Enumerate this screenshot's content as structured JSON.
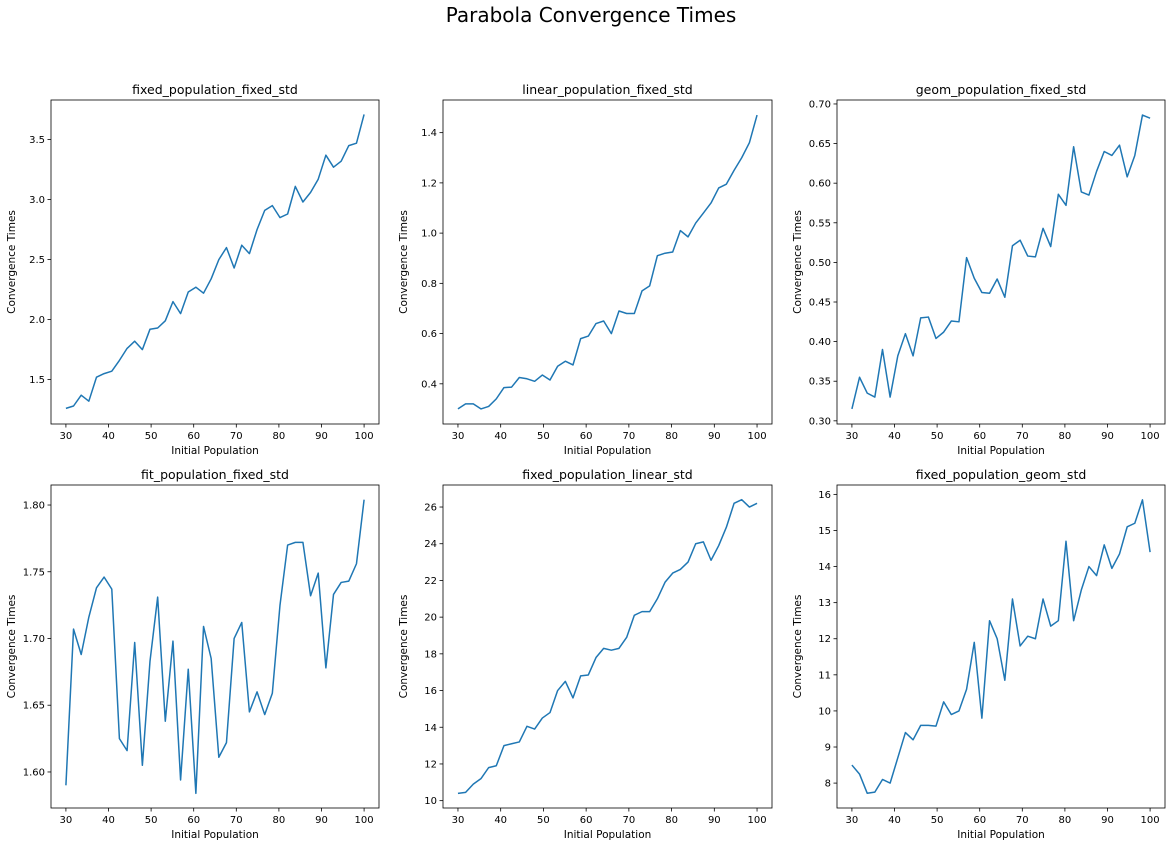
{
  "title": "Parabola Convergence Times",
  "chart_data": [
    {
      "type": "line",
      "title": "fixed_population_fixed_std",
      "x_label": "Initial Population",
      "y_label": "Convergence Times",
      "x": [
        30,
        31.79,
        33.59,
        35.38,
        37.18,
        38.97,
        40.77,
        42.56,
        44.36,
        46.15,
        47.95,
        49.74,
        51.54,
        53.33,
        55.13,
        56.92,
        58.72,
        60.51,
        62.31,
        64.1,
        65.9,
        67.69,
        69.49,
        71.28,
        73.08,
        74.87,
        76.67,
        78.46,
        80.26,
        82.05,
        83.85,
        85.64,
        87.44,
        89.23,
        91.03,
        92.82,
        94.62,
        96.41,
        98.21,
        100
      ],
      "series": [
        {
          "color": "#1f77b4",
          "values": [
            1.26,
            1.28,
            1.37,
            1.32,
            1.52,
            1.55,
            1.57,
            1.66,
            1.76,
            1.82,
            1.75,
            1.92,
            1.93,
            1.99,
            2.15,
            2.05,
            2.23,
            2.27,
            2.22,
            2.34,
            2.5,
            2.6,
            2.43,
            2.62,
            2.55,
            2.75,
            2.91,
            2.95,
            2.85,
            2.88,
            3.11,
            2.98,
            3.06,
            3.17,
            3.37,
            3.27,
            3.32,
            3.45,
            3.47,
            3.71
          ]
        }
      ],
      "xlim": [
        26.5,
        103.5
      ],
      "xticks": [
        30,
        40,
        50,
        60,
        70,
        80,
        90,
        100
      ],
      "ylim": [
        1.13,
        3.83
      ],
      "yticks": [
        1.5,
        {
          "value": 2,
          "label": "2.0"
        },
        2.5,
        {
          "value": 3,
          "label": "3.0"
        },
        3.5
      ]
    },
    {
      "type": "line",
      "title": "linear_population_fixed_std",
      "x_label": "Initial Population",
      "y_label": "Convergence Times",
      "x": [
        30,
        31.79,
        33.59,
        35.38,
        37.18,
        38.97,
        40.77,
        42.56,
        44.36,
        46.15,
        47.95,
        49.74,
        51.54,
        53.33,
        55.13,
        56.92,
        58.72,
        60.51,
        62.31,
        64.1,
        65.9,
        67.69,
        69.49,
        71.28,
        73.08,
        74.87,
        76.67,
        78.46,
        80.26,
        82.05,
        83.85,
        85.64,
        87.44,
        89.23,
        91.03,
        92.82,
        94.62,
        96.41,
        98.21,
        100
      ],
      "series": [
        {
          "color": "#1f77b4",
          "values": [
            0.3,
            0.32,
            0.32,
            0.3,
            0.31,
            0.34,
            0.385,
            0.387,
            0.425,
            0.42,
            0.41,
            0.435,
            0.415,
            0.47,
            0.49,
            0.475,
            0.58,
            0.59,
            0.64,
            0.65,
            0.6,
            0.69,
            0.68,
            0.68,
            0.77,
            0.79,
            0.91,
            0.92,
            0.925,
            1.01,
            0.985,
            1.04,
            1.08,
            1.12,
            1.18,
            1.195,
            1.25,
            1.3,
            1.36,
            1.47
          ]
        }
      ],
      "xlim": [
        26.5,
        103.5
      ],
      "xticks": [
        30,
        40,
        50,
        60,
        70,
        80,
        90,
        100
      ],
      "ylim": [
        0.24,
        1.53
      ],
      "yticks": [
        0.4,
        0.6,
        0.8,
        {
          "value": 1,
          "label": "1.0"
        },
        1.2,
        1.4
      ]
    },
    {
      "type": "line",
      "title": "geom_population_fixed_std",
      "x_label": "Initial Population",
      "y_label": "Convergence Times",
      "x": [
        30,
        31.79,
        33.59,
        35.38,
        37.18,
        38.97,
        40.77,
        42.56,
        44.36,
        46.15,
        47.95,
        49.74,
        51.54,
        53.33,
        55.13,
        56.92,
        58.72,
        60.51,
        62.31,
        64.1,
        65.9,
        67.69,
        69.49,
        71.28,
        73.08,
        74.87,
        76.67,
        78.46,
        80.26,
        82.05,
        83.85,
        85.64,
        87.44,
        89.23,
        91.03,
        92.82,
        94.62,
        96.41,
        98.21,
        100
      ],
      "series": [
        {
          "color": "#1f77b4",
          "values": [
            0.315,
            0.355,
            0.335,
            0.33,
            0.39,
            0.33,
            0.382,
            0.41,
            0.382,
            0.43,
            0.431,
            0.404,
            0.412,
            0.426,
            0.425,
            0.506,
            0.48,
            0.462,
            0.461,
            0.479,
            0.456,
            0.521,
            0.528,
            0.508,
            0.507,
            0.543,
            0.52,
            0.586,
            0.572,
            0.646,
            0.589,
            0.585,
            0.615,
            0.64,
            0.635,
            0.648,
            0.608,
            0.635,
            0.686,
            0.682
          ]
        }
      ],
      "xlim": [
        26.5,
        103.5
      ],
      "xticks": [
        30,
        40,
        50,
        60,
        70,
        80,
        90,
        100
      ],
      "ylim": [
        0.296,
        0.705
      ],
      "yticks": [
        {
          "value": 0.3,
          "label": "0.30"
        },
        {
          "value": 0.35,
          "label": "0.35"
        },
        {
          "value": 0.4,
          "label": "0.40"
        },
        {
          "value": 0.45,
          "label": "0.45"
        },
        {
          "value": 0.5,
          "label": "0.50"
        },
        {
          "value": 0.55,
          "label": "0.55"
        },
        {
          "value": 0.6,
          "label": "0.60"
        },
        {
          "value": 0.65,
          "label": "0.65"
        },
        {
          "value": 0.7,
          "label": "0.70"
        }
      ]
    },
    {
      "type": "line",
      "title": "fit_population_fixed_std",
      "x_label": "Initial Population",
      "y_label": "Convergence Times",
      "x": [
        30,
        31.79,
        33.59,
        35.38,
        37.18,
        38.97,
        40.77,
        42.56,
        44.36,
        46.15,
        47.95,
        49.74,
        51.54,
        53.33,
        55.13,
        56.92,
        58.72,
        60.51,
        62.31,
        64.1,
        65.9,
        67.69,
        69.49,
        71.28,
        73.08,
        74.87,
        76.67,
        78.46,
        80.26,
        82.05,
        83.85,
        85.64,
        87.44,
        89.23,
        91.03,
        92.82,
        94.62,
        96.41,
        98.21,
        100
      ],
      "series": [
        {
          "color": "#1f77b4",
          "values": [
            1.59,
            1.707,
            1.688,
            1.716,
            1.738,
            1.746,
            1.737,
            1.625,
            1.616,
            1.697,
            1.605,
            1.683,
            1.731,
            1.638,
            1.698,
            1.594,
            1.677,
            1.584,
            1.709,
            1.685,
            1.611,
            1.622,
            1.7,
            1.712,
            1.645,
            1.66,
            1.643,
            1.659,
            1.725,
            1.77,
            1.772,
            1.772,
            1.732,
            1.749,
            1.678,
            1.733,
            1.742,
            1.743,
            1.756,
            1.804
          ]
        }
      ],
      "xlim": [
        26.5,
        103.5
      ],
      "xticks": [
        30,
        40,
        50,
        60,
        70,
        80,
        90,
        100
      ],
      "ylim": [
        1.573,
        1.815
      ],
      "yticks": [
        {
          "value": 1.6,
          "label": "1.60"
        },
        {
          "value": 1.65,
          "label": "1.65"
        },
        {
          "value": 1.7,
          "label": "1.70"
        },
        {
          "value": 1.75,
          "label": "1.75"
        },
        {
          "value": 1.8,
          "label": "1.80"
        }
      ]
    },
    {
      "type": "line",
      "title": "fixed_population_linear_std",
      "x_label": "Initial Population",
      "y_label": "Convergence Times",
      "x": [
        30,
        31.79,
        33.59,
        35.38,
        37.18,
        38.97,
        40.77,
        42.56,
        44.36,
        46.15,
        47.95,
        49.74,
        51.54,
        53.33,
        55.13,
        56.92,
        58.72,
        60.51,
        62.31,
        64.1,
        65.9,
        67.69,
        69.49,
        71.28,
        73.08,
        74.87,
        76.67,
        78.46,
        80.26,
        82.05,
        83.85,
        85.64,
        87.44,
        89.23,
        91.03,
        92.82,
        94.62,
        96.41,
        98.21,
        100
      ],
      "series": [
        {
          "color": "#1f77b4",
          "values": [
            10.4,
            10.45,
            10.9,
            11.2,
            11.8,
            11.9,
            13.0,
            13.1,
            13.2,
            14.05,
            13.9,
            14.5,
            14.8,
            16.0,
            16.5,
            15.6,
            16.8,
            16.85,
            17.8,
            18.3,
            18.2,
            18.3,
            18.9,
            20.1,
            20.3,
            20.3,
            21.0,
            21.9,
            22.4,
            22.6,
            23.0,
            24.0,
            24.1,
            23.1,
            23.9,
            24.9,
            26.2,
            26.4,
            26.0,
            26.2
          ]
        }
      ],
      "xlim": [
        26.5,
        103.5
      ],
      "xticks": [
        30,
        40,
        50,
        60,
        70,
        80,
        90,
        100
      ],
      "ylim": [
        9.6,
        27.2
      ],
      "yticks": [
        10,
        12,
        14,
        16,
        18,
        20,
        22,
        24,
        26
      ]
    },
    {
      "type": "line",
      "title": "fixed_population_geom_std",
      "x_label": "Initial Population",
      "y_label": "Convergence Times",
      "x": [
        30,
        31.79,
        33.59,
        35.38,
        37.18,
        38.97,
        40.77,
        42.56,
        44.36,
        46.15,
        47.95,
        49.74,
        51.54,
        53.33,
        55.13,
        56.92,
        58.72,
        60.51,
        62.31,
        64.1,
        65.9,
        67.69,
        69.49,
        71.28,
        73.08,
        74.87,
        76.67,
        78.46,
        80.26,
        82.05,
        83.85,
        85.64,
        87.44,
        89.23,
        91.03,
        92.82,
        94.62,
        96.41,
        98.21,
        100
      ],
      "series": [
        {
          "color": "#1f77b4",
          "values": [
            8.5,
            8.25,
            7.72,
            7.75,
            8.1,
            8.0,
            8.7,
            9.4,
            9.2,
            9.6,
            9.6,
            9.58,
            10.25,
            9.9,
            10.0,
            10.6,
            11.9,
            9.8,
            12.5,
            12.0,
            10.85,
            13.1,
            11.8,
            12.07,
            12.0,
            13.1,
            12.35,
            12.5,
            14.7,
            12.5,
            13.35,
            14.0,
            13.75,
            14.6,
            13.95,
            14.35,
            15.1,
            15.2,
            15.85,
            14.4
          ]
        }
      ],
      "xlim": [
        26.5,
        103.5
      ],
      "xticks": [
        30,
        40,
        50,
        60,
        70,
        80,
        90,
        100
      ],
      "ylim": [
        7.31,
        16.26
      ],
      "yticks": [
        8,
        9,
        10,
        11,
        12,
        13,
        14,
        15,
        16
      ]
    }
  ]
}
